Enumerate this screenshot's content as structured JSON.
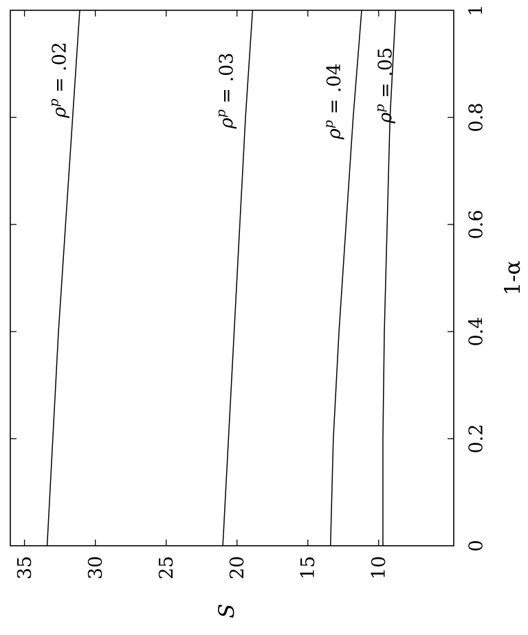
{
  "chart_data": {
    "type": "line",
    "orientation": "rotated-90-clockwise",
    "title": "",
    "xlabel": "1-α",
    "ylabel": "S",
    "xlim": [
      0,
      1
    ],
    "ylim": [
      4.7,
      36
    ],
    "x_ticks": [
      0,
      0.2,
      0.4,
      0.6,
      0.8,
      1
    ],
    "x_tick_labels": [
      "0",
      "0.2",
      "0.4",
      "0.6",
      "0.8",
      "1"
    ],
    "y_ticks": [
      10,
      15,
      20,
      25,
      30,
      35
    ],
    "y_tick_labels": [
      "10",
      "15",
      "20",
      "25",
      "30",
      "35"
    ],
    "grid": false,
    "legend": "none",
    "series": [
      {
        "name": "ρ^p = .02",
        "label_parts": {
          "base": "ρ",
          "sup": "p",
          "rest": " = .02"
        },
        "label_at": {
          "x": 0.87,
          "S": 32.1
        },
        "x": [
          0,
          0.2,
          0.4,
          0.6,
          0.8,
          1
        ],
        "values": [
          33.4,
          33.0,
          32.6,
          32.1,
          31.6,
          31.1
        ]
      },
      {
        "name": "ρ^p = .03",
        "label_parts": {
          "base": "ρ",
          "sup": "p",
          "rest": " = .03"
        },
        "label_at": {
          "x": 0.85,
          "S": 20.3
        },
        "x": [
          0,
          0.2,
          0.4,
          0.6,
          0.8,
          1
        ],
        "values": [
          21.0,
          20.6,
          20.2,
          19.8,
          19.4,
          18.9
        ]
      },
      {
        "name": "ρ^p = .04",
        "label_parts": {
          "base": "ρ",
          "sup": "p",
          "rest": " = .04"
        },
        "label_at": {
          "x": 0.83,
          "S": 12.7
        },
        "x": [
          0,
          0.2,
          0.4,
          0.6,
          0.8,
          1
        ],
        "values": [
          13.4,
          13.2,
          12.8,
          12.3,
          11.8,
          11.2
        ]
      },
      {
        "name": "ρ^p = .05",
        "label_parts": {
          "base": "ρ",
          "sup": "p",
          "rest": " = .05"
        },
        "label_at": {
          "x": 0.86,
          "S": 9.1
        },
        "x": [
          0,
          0.2,
          0.4,
          0.6,
          0.8,
          1
        ],
        "values": [
          9.7,
          9.7,
          9.6,
          9.4,
          9.2,
          8.8
        ]
      }
    ]
  }
}
